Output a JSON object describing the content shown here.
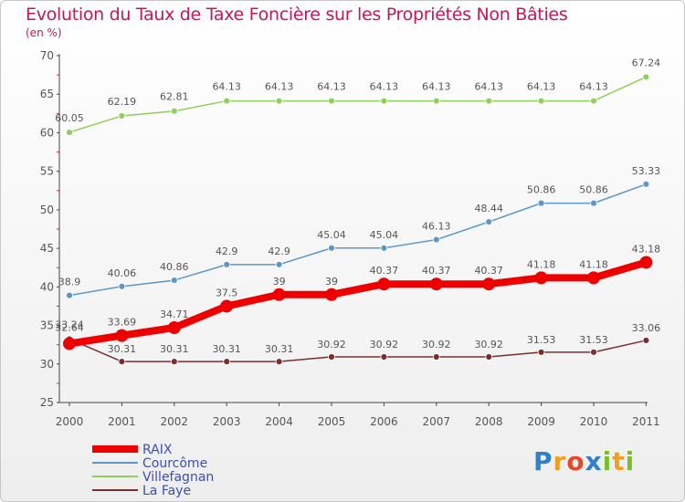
{
  "title": "Evolution du Taux de Taxe Foncière sur les Propriétés Non Bâties",
  "subtitle": "(en %)",
  "logo_text": "Proxiti",
  "chart_data": {
    "type": "line",
    "title": "Evolution du Taux de Taxe Foncière sur les Propriétés Non Bâties",
    "ylabel": "(en %)",
    "xlabel": "",
    "x": [
      "2000",
      "2001",
      "2002",
      "2003",
      "2004",
      "2005",
      "2006",
      "2007",
      "2008",
      "2009",
      "2010",
      "2011"
    ],
    "ylim": [
      25,
      70
    ],
    "yticks": [
      "25",
      "30",
      "35",
      "40",
      "45",
      "50",
      "55",
      "60",
      "65",
      "70"
    ],
    "grid": false,
    "legend_position": "bottom-left",
    "series": [
      {
        "name": "RAIX",
        "color": "#ee0000",
        "values": [
          32.64,
          33.69,
          34.71,
          37.5,
          39,
          39,
          40.37,
          40.37,
          40.37,
          41.18,
          41.18,
          43.18
        ],
        "labels": [
          "32.64",
          "33.69",
          "34.71",
          "37.5",
          "39",
          "39",
          "40.37",
          "40.37",
          "40.37",
          "41.18",
          "41.18",
          "43.18"
        ]
      },
      {
        "name": "Courcôme",
        "color": "#5b97c9",
        "values": [
          38.9,
          40.06,
          40.86,
          42.9,
          42.9,
          45.04,
          45.04,
          46.13,
          48.44,
          50.86,
          50.86,
          53.33
        ],
        "labels": [
          "38.9",
          "40.06",
          "40.86",
          "42.9",
          "42.9",
          "45.04",
          "45.04",
          "46.13",
          "48.44",
          "50.86",
          "50.86",
          "53.33"
        ]
      },
      {
        "name": "Villefagnan",
        "color": "#8fd05a",
        "values": [
          60.05,
          62.19,
          62.81,
          64.13,
          64.13,
          64.13,
          64.13,
          64.13,
          64.13,
          64.13,
          64.13,
          67.24
        ],
        "labels": [
          "60.05",
          "62.19",
          "62.81",
          "64.13",
          "64.13",
          "64.13",
          "64.13",
          "64.13",
          "64.13",
          "64.13",
          "64.13",
          "67.24"
        ]
      },
      {
        "name": "La Faye",
        "color": "#7a2e2e",
        "values": [
          33.24,
          30.31,
          30.31,
          30.31,
          30.31,
          30.92,
          30.92,
          30.92,
          30.92,
          31.53,
          31.53,
          33.06
        ],
        "labels": [
          "33.24",
          "30.31",
          "30.31",
          "30.31",
          "30.31",
          "30.92",
          "30.92",
          "30.92",
          "30.92",
          "31.53",
          "31.53",
          "33.06"
        ]
      }
    ]
  }
}
